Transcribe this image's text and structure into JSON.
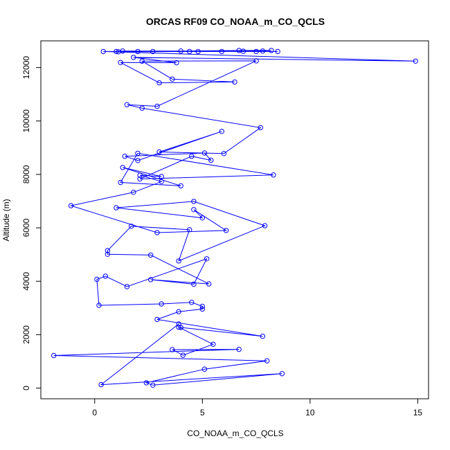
{
  "chart_data": {
    "type": "line",
    "title": "ORCAS RF09 CO_NOAA_m_CO_QCLS",
    "xlabel": "CO_NOAA_m_CO_QCLS",
    "ylabel": "Altitude (m)",
    "xlim": [
      -2.5,
      15.5
    ],
    "ylim": [
      -400,
      13000
    ],
    "xticks": [
      0,
      5,
      10,
      15
    ],
    "yticks": [
      0,
      2000,
      4000,
      6000,
      8000,
      10000,
      12000
    ],
    "grid": false,
    "legend": "none",
    "point_marker": "open-circle",
    "color": "#0000ff",
    "series": [
      {
        "x": [
          3.9,
          0.3,
          8.7,
          2.7,
          2.4,
          5.1,
          8.0,
          -1.9,
          6.7,
          3.6,
          4.1,
          5.5,
          3.9,
          4.0,
          7.8,
          2.9,
          3.9,
          5.0,
          5.0,
          4.5,
          3.1,
          0.2,
          0.1,
          0.5,
          1.5,
          5.2,
          4.6,
          2.6,
          5.3,
          2.6,
          0.6,
          0.6,
          1.7,
          4.4,
          3.9,
          7.9,
          4.6,
          1.0,
          5.0,
          4.6,
          6.1,
          2.9,
          -1.1,
          1.8,
          3.1,
          2.1,
          3.1,
          1.3,
          4.0,
          1.2,
          2.0,
          8.3,
          2.1,
          4.5,
          5.4,
          5.1,
          1.4,
          2.0,
          5.9,
          3.0,
          6.0,
          7.7,
          2.2,
          1.5,
          2.9,
          7.5,
          2.2,
          3.6,
          6.5,
          3.0,
          1.2,
          3.8,
          1.8,
          14.9,
          0.4,
          2.0,
          2.7,
          4.8,
          5.9,
          7.5,
          8.5,
          1.0,
          1.3,
          4.0,
          6.7,
          8.2,
          7.8,
          6.9,
          4.4,
          1.1
        ]
      },
      {
        "x": [
          2400,
          130,
          540,
          110,
          200,
          710,
          1020,
          1220,
          1450,
          1440,
          1230,
          1640,
          2280,
          2270,
          1940,
          2570,
          2860,
          2960,
          3060,
          3210,
          3150,
          3100,
          4070,
          4190,
          3800,
          4840,
          3890,
          4060,
          3900,
          4980,
          5010,
          5150,
          6060,
          5930,
          4760,
          6080,
          6990,
          6750,
          6370,
          6680,
          5900,
          5820,
          6830,
          7330,
          7730,
          7970,
          7920,
          8260,
          7570,
          7700,
          8790,
          7980,
          7830,
          8680,
          8530,
          8800,
          8680,
          8520,
          9610,
          8840,
          8780,
          9750,
          10480,
          10610,
          10550,
          12250,
          12240,
          11570,
          11460,
          11430,
          12190,
          12180,
          12380,
          12240,
          12600,
          12600,
          12600,
          12600,
          12600,
          12600,
          12600,
          12600,
          12620,
          12620,
          12640,
          12640,
          12620,
          12610,
          12600,
          12590
        ]
      }
    ]
  }
}
